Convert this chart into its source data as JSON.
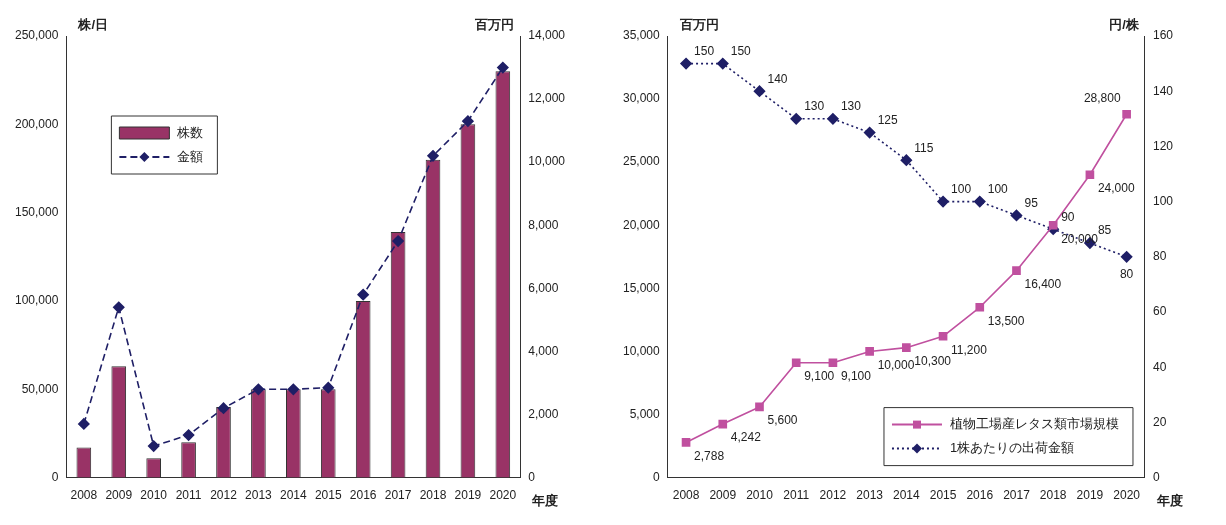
{
  "chart_data": [
    {
      "type": "bar",
      "ylabel": "株/日",
      "y2label": "百万円",
      "xlabel": "年度",
      "categories": [
        "2008",
        "2009",
        "2010",
        "2011",
        "2012",
        "2013",
        "2014",
        "2015",
        "2016",
        "2017",
        "2018",
        "2019",
        "2020"
      ],
      "series": [
        {
          "name": "株数",
          "color": "#993366",
          "values": [
            17000,
            63000,
            11000,
            20000,
            40000,
            50000,
            50000,
            50000,
            100000,
            139000,
            180000,
            200000,
            230000
          ]
        },
        {
          "name": "金額",
          "type": "line",
          "axis": "y2",
          "color": "#1f1f66",
          "marker": "diamond",
          "line_style": "dashed",
          "values": [
            1700,
            5400,
            1000,
            1350,
            2200,
            2800,
            2800,
            2850,
            5800,
            7500,
            10200,
            11300,
            13000
          ]
        }
      ],
      "ylim": [
        0,
        250000
      ],
      "yticks": [
        0,
        {
          "value": 50000,
          "label": "50,000"
        },
        {
          "value": 100000,
          "label": "100,000"
        },
        {
          "value": 150000,
          "label": "150,000"
        },
        {
          "value": 200000,
          "label": "200,000"
        },
        {
          "value": 250000,
          "label": "250,000"
        }
      ],
      "y2lim": [
        0,
        14000
      ],
      "y2ticks": [
        0,
        {
          "value": 2000,
          "label": "2,000"
        },
        {
          "value": 4000,
          "label": "4,000"
        },
        {
          "value": 6000,
          "label": "6,000"
        },
        {
          "value": 8000,
          "label": "8,000"
        },
        {
          "value": 10000,
          "label": "10,000"
        },
        {
          "value": 12000,
          "label": "12,000"
        },
        {
          "value": 14000,
          "label": "14,000"
        }
      ],
      "grid": false,
      "legend": "top left"
    },
    {
      "type": "line",
      "ylabel": "百万円",
      "y2label": "円/株",
      "xlabel": "年度",
      "categories": [
        "2008",
        "2009",
        "2010",
        "2011",
        "2012",
        "2013",
        "2014",
        "2015",
        "2016",
        "2017",
        "2018",
        "2019",
        "2020"
      ],
      "series": [
        {
          "name": "植物工場産レタス類市場規模",
          "color": "#c0509f",
          "marker": "square",
          "line_style": "solid",
          "values": [
            2788,
            4242,
            5600,
            9100,
            9100,
            10000,
            10300,
            11200,
            13500,
            16400,
            20000,
            24000,
            28800
          ],
          "value_labels": [
            "2,788",
            "4,242",
            "5,600",
            "9,100",
            "9,100",
            "10,000",
            "10,300",
            "11,200",
            "13,500",
            "16,400",
            "20,000",
            "24,000",
            "28,800"
          ]
        },
        {
          "name": "1株あたりの出荷金額",
          "axis": "y2",
          "color": "#1f1f66",
          "marker": "diamond",
          "line_style": "dotted",
          "values": [
            150,
            150,
            140,
            130,
            130,
            125,
            115,
            100,
            100,
            95,
            90,
            85,
            80
          ],
          "value_labels": [
            "150",
            "150",
            "140",
            "130",
            "130",
            "125",
            "115",
            "100",
            "100",
            "95",
            "90",
            "85",
            "80"
          ]
        }
      ],
      "ylim": [
        0,
        35000
      ],
      "yticks": [
        0,
        {
          "value": 5000,
          "label": "5,000"
        },
        {
          "value": 10000,
          "label": "10,000"
        },
        {
          "value": 15000,
          "label": "15,000"
        },
        {
          "value": 20000,
          "label": "20,000"
        },
        {
          "value": 25000,
          "label": "25,000"
        },
        {
          "value": 30000,
          "label": "30,000"
        },
        {
          "value": 35000,
          "label": "35,000"
        }
      ],
      "y2lim": [
        0,
        160
      ],
      "y2ticks": [
        0,
        20,
        40,
        60,
        80,
        100,
        120,
        140,
        160
      ],
      "grid": false,
      "legend": "bottom right"
    }
  ]
}
